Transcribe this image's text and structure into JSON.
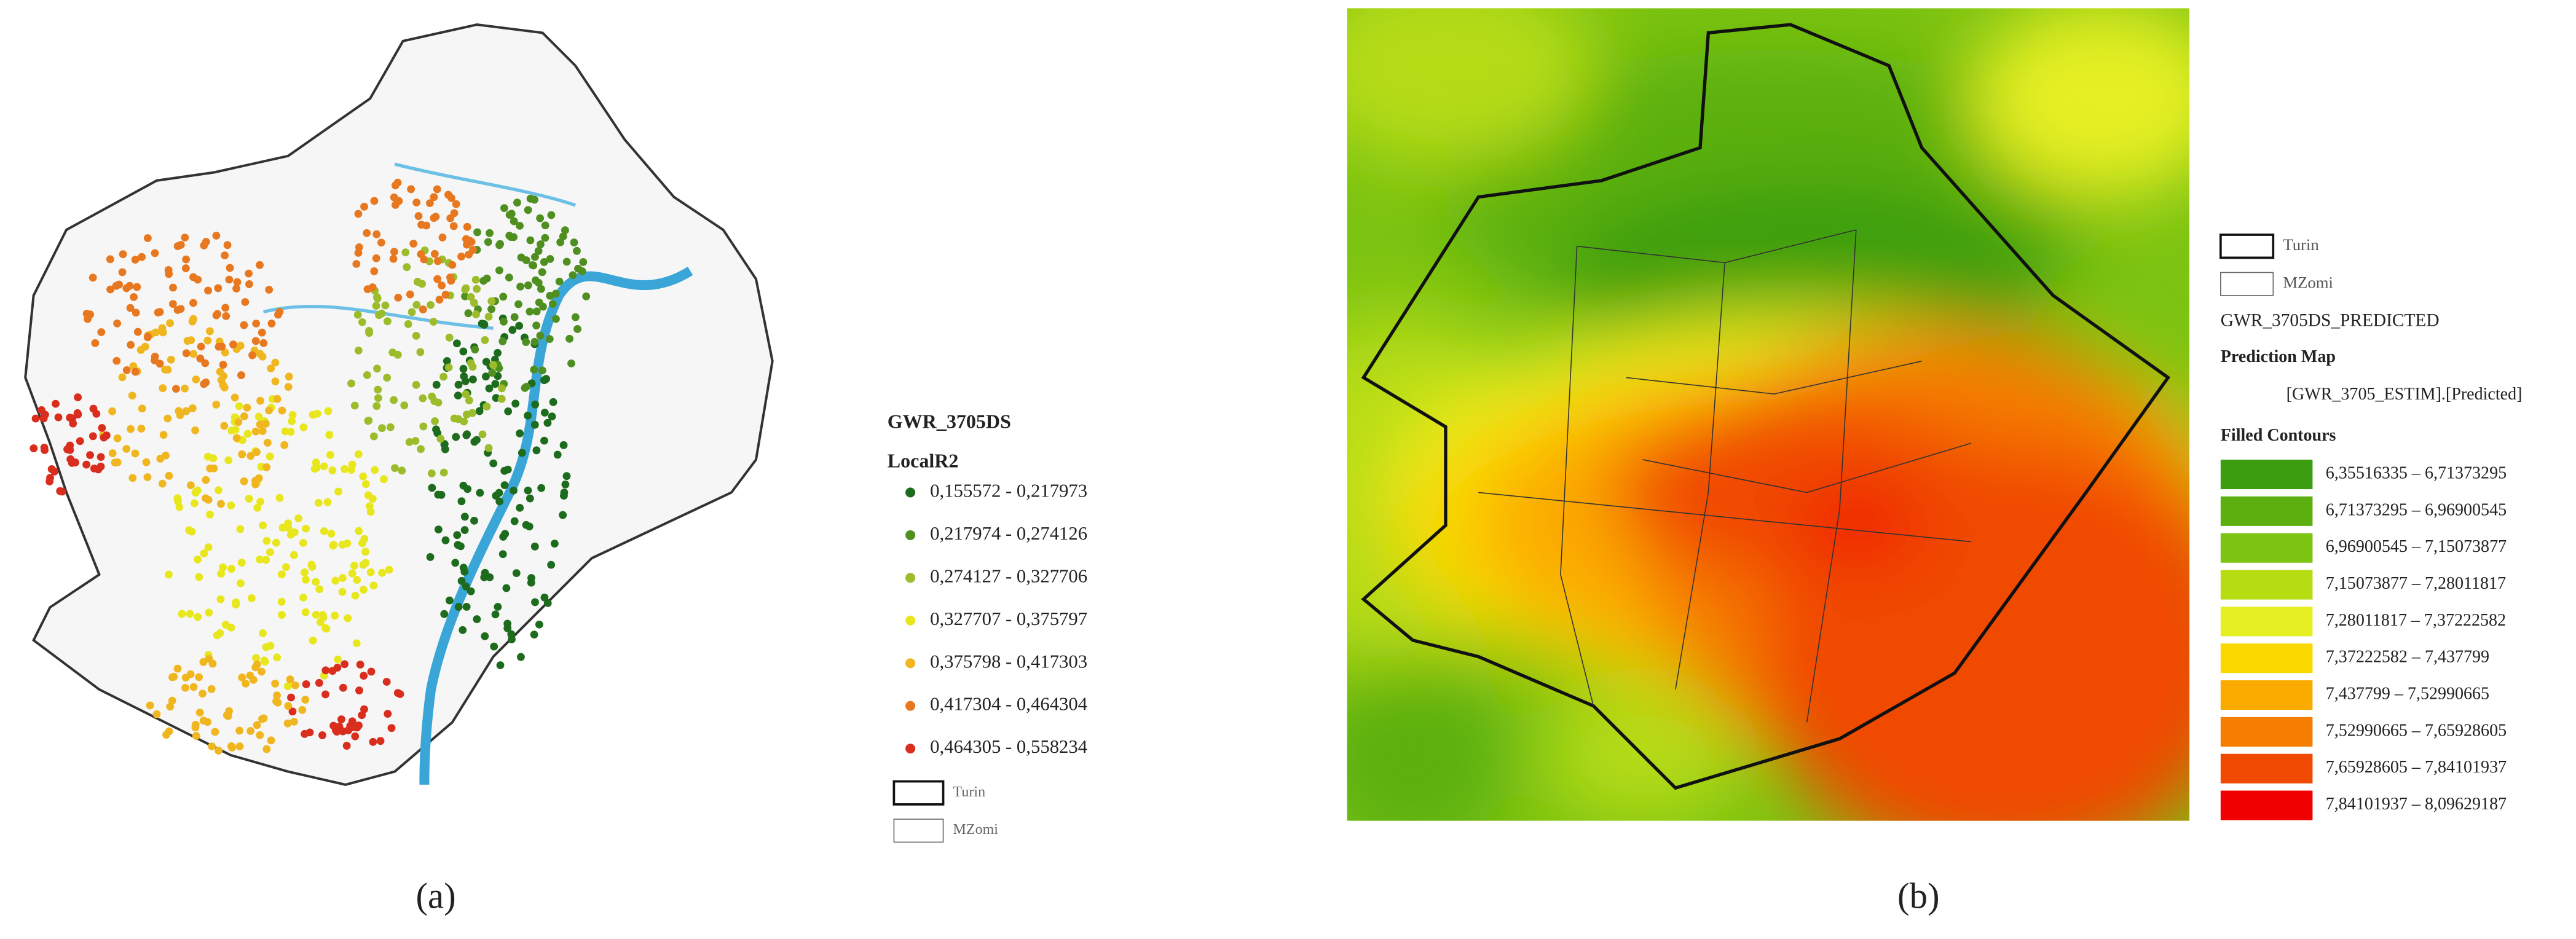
{
  "panel_a": {
    "legend": {
      "title": "GWR_3705DS",
      "field": "LocalR2",
      "items": [
        {
          "label": "0,155572 - 0,217973",
          "color": "#1d6b1d"
        },
        {
          "label": "0,217974 - 0,274126",
          "color": "#4f8f1f"
        },
        {
          "label": "0,274127 - 0,327706",
          "color": "#9cbc2b"
        },
        {
          "label": "0,327707 - 0,375797",
          "color": "#e8e61c"
        },
        {
          "label": "0,375798 - 0,417303",
          "color": "#f0b620"
        },
        {
          "label": "0,417304 - 0,464304",
          "color": "#e8781f"
        },
        {
          "label": "0,464305 - 0,558234",
          "color": "#d92d1e"
        }
      ],
      "layers": [
        "Turin",
        "MZomi"
      ]
    },
    "caption": "(a)"
  },
  "panel_b": {
    "legend": {
      "layers": [
        "Turin",
        "MZomi"
      ],
      "title": "GWR_3705DS_PREDICTED",
      "subtitle": "Prediction Map",
      "field": "[GWR_3705_ESTIM].[Predicted]",
      "group": "Filled Contours",
      "items": [
        {
          "label": "6,35516335 – 6,71373295",
          "color": "#3a9e10"
        },
        {
          "label": "6,71373295 – 6,96900545",
          "color": "#5bb010"
        },
        {
          "label": "6,96900545 – 7,15073877",
          "color": "#7cc312"
        },
        {
          "label": "7,15073877 – 7,28011817",
          "color": "#b6dc12"
        },
        {
          "label": "7,28011817 – 7,37222582",
          "color": "#e6ef22"
        },
        {
          "label": "7,37222582 – 7,437799",
          "color": "#fbd800"
        },
        {
          "label": "7,437799 – 7,52990665",
          "color": "#fbaa00"
        },
        {
          "label": "7,52990665 – 7,65928605",
          "color": "#f57d00"
        },
        {
          "label": "7,65928605 – 7,84101937",
          "color": "#f04a00"
        },
        {
          "label": "7,84101937 – 8,09629187",
          "color": "#f00000"
        }
      ]
    },
    "caption": "(b)"
  }
}
